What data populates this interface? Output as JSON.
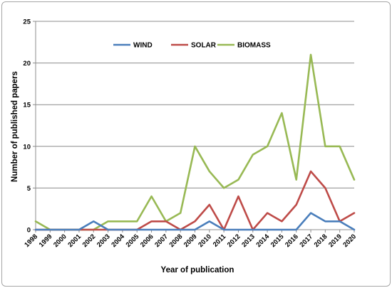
{
  "chart_data": {
    "type": "line",
    "x": [
      "1998",
      "1999",
      "2000",
      "2001",
      "2002",
      "2003",
      "2004",
      "2005",
      "2006",
      "2007",
      "2008",
      "2009",
      "2010",
      "2011",
      "2012",
      "2013",
      "2014",
      "2015",
      "2016",
      "2017",
      "2018",
      "2019",
      "2020"
    ],
    "series": [
      {
        "name": "WIND",
        "color": "#4a7ebb",
        "values": [
          0,
          0,
          0,
          0,
          1,
          0,
          0,
          0,
          0,
          0,
          0,
          0,
          1,
          0,
          0,
          0,
          0,
          0,
          0,
          2,
          1,
          1,
          0
        ]
      },
      {
        "name": "SOLAR",
        "color": "#be4b48",
        "values": [
          0,
          0,
          0,
          0,
          0,
          0,
          0,
          0,
          1,
          1,
          0,
          1,
          3,
          0,
          4,
          0,
          2,
          1,
          3,
          7,
          5,
          1,
          2
        ]
      },
      {
        "name": "BIOMASS",
        "color": "#98b954",
        "values": [
          1,
          0,
          0,
          0,
          0,
          1,
          1,
          1,
          4,
          1,
          2,
          10,
          7,
          5,
          6,
          9,
          10,
          14,
          6,
          21,
          10,
          10,
          6
        ]
      }
    ],
    "xlabel": "Year of publication",
    "ylabel": "Number of published papers",
    "ylim": [
      0,
      25
    ],
    "yticks": [
      "0",
      "5",
      "10",
      "15",
      "20",
      "25"
    ],
    "grid": true,
    "legend_position": "top"
  }
}
